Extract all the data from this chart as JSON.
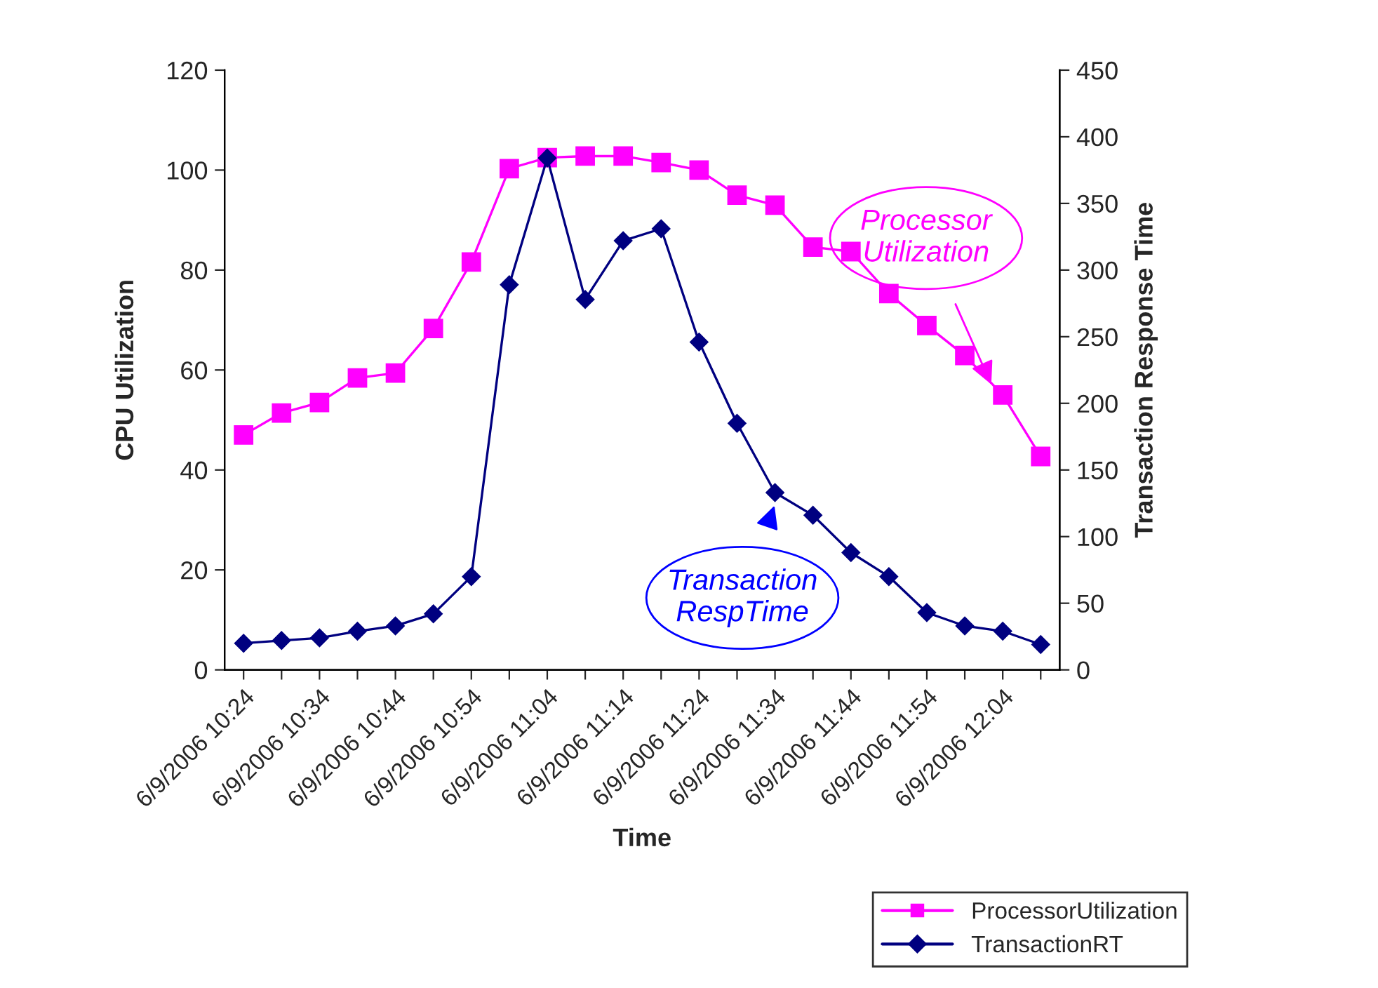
{
  "chart_data": {
    "type": "line",
    "xlabel": "Time",
    "ylabel": "CPU Utilization",
    "y2label": "Transaction Response Time",
    "categories": [
      "6/9/2006 10:24",
      null,
      "6/9/2006 10:34",
      null,
      "6/9/2006 10:44",
      null,
      "6/9/2006 10:54",
      null,
      "6/9/2006 11:04",
      null,
      "6/9/2006 11:14",
      null,
      "6/9/2006 11:24",
      null,
      "6/9/2006 11:34",
      null,
      "6/9/2006 11:44",
      null,
      "6/9/2006 11:54",
      null,
      "6/9/2006 12:04",
      null
    ],
    "series": [
      {
        "name": "ProcessorUtilization",
        "color": "#ff00ff",
        "marker": "square",
        "values": [
          47,
          51.4,
          53.5,
          58.4,
          59.4,
          68.3,
          81.6,
          100.3,
          102.5,
          102.8,
          102.8,
          101.5,
          100,
          95,
          93,
          84.6,
          83.7,
          75.3,
          68.9,
          62.9,
          55,
          42.7
        ]
      },
      {
        "name": "TransactionRT",
        "color": "#000080",
        "marker": "diamond",
        "axis": "y2",
        "values": [
          20,
          22,
          24,
          29,
          33,
          42,
          70,
          289,
          384,
          278,
          322,
          331,
          246,
          185,
          133,
          116,
          88,
          70,
          43,
          33,
          29,
          19
        ]
      }
    ],
    "ylim": [
      0,
      120
    ],
    "yticks": [
      0,
      20,
      40,
      60,
      80,
      100,
      120
    ],
    "y2lim": [
      0,
      450
    ],
    "y2ticks": [
      0,
      50,
      100,
      150,
      200,
      250,
      300,
      350,
      400,
      450
    ],
    "annotations": [
      "Processor Utilization",
      "Transaction RespTime"
    ],
    "legend": "bottom right",
    "grid": false,
    "line_style": "solid"
  }
}
